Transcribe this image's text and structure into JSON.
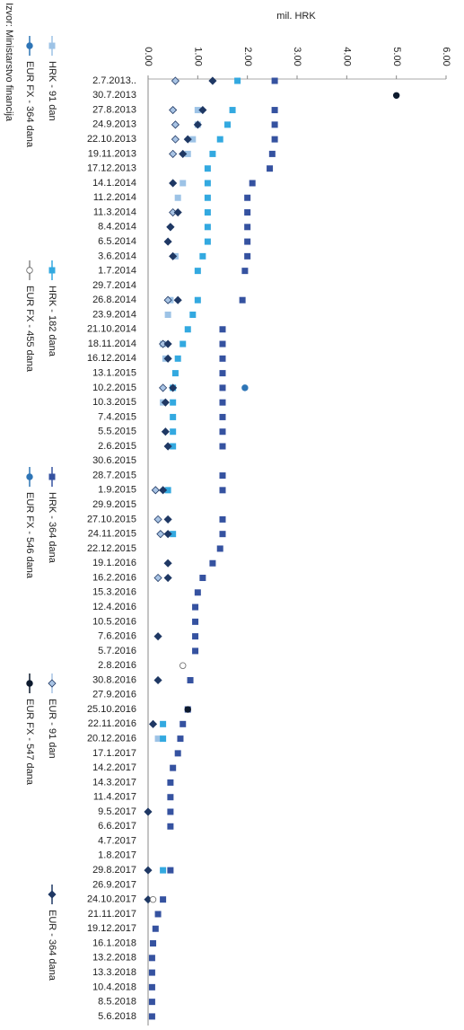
{
  "chart_data": {
    "type": "scatter",
    "orientation": "rotated",
    "y_label": "mil. HRK",
    "source": "Izvor: Ministarstvo financija",
    "ylim": [
      0,
      6
    ],
    "yticks": [
      {
        "value": 0,
        "label": "0.00"
      },
      {
        "value": 1,
        "label": "1.00"
      },
      {
        "value": 2,
        "label": "2.00"
      },
      {
        "value": 3,
        "label": "3.00"
      },
      {
        "value": 4,
        "label": "4.00"
      },
      {
        "value": 5,
        "label": "5.00"
      },
      {
        "value": 6,
        "label": "6.00"
      }
    ],
    "categories": [
      "2.7.2013..",
      "30.7.2013",
      "27.8.2013",
      "24.9.2013",
      "22.10.2013",
      "19.11.2013",
      "17.12.2013",
      "14.1.2014",
      "11.2.2014",
      "11.3.2014",
      "8.4.2014",
      "6.5.2014",
      "3.6.2014",
      "1.7.2014",
      "29.7.2014",
      "26.8.2014",
      "23.9.2014",
      "21.10.2014",
      "18.11.2014",
      "16.12.2014",
      "13.1.2015",
      "10.2.2015",
      "10.3.2015",
      "7.4.2015",
      "5.5.2015",
      "2.6.2015",
      "30.6.2015",
      "28.7.2015",
      "1.9.2015",
      "29.9.2015",
      "27.10.2015",
      "24.11.2015",
      "22.12.2015",
      "19.1.2016",
      "16.2.2016",
      "15.3.2016",
      "12.4.2016",
      "10.5.2016",
      "7.6.2016",
      "5.7.2016",
      "2.8.2016",
      "30.8.2016",
      "27.9.2016",
      "25.10.2016",
      "22.11.2016",
      "20.12.2016",
      "17.1.2017",
      "14.2.2017",
      "14.3.2017",
      "11.4.2017",
      "9.5.2017",
      "6.6.2017",
      "4.7.2017",
      "1.8.2017",
      "29.8.2017",
      "26.9.2017",
      "24.10.2017",
      "21.11.2017",
      "19.12.2017",
      "16.1.2018",
      "13.2.2018",
      "13.3.2018",
      "10.4.2018",
      "8.5.2018",
      "5.6.2018"
    ],
    "series": [
      {
        "name": "HRK - 91 dan",
        "color": "#9dc3e6",
        "marker": "square",
        "values": [
          null,
          null,
          1.0,
          1.0,
          0.9,
          0.8,
          null,
          0.7,
          0.6,
          null,
          null,
          null,
          0.55,
          null,
          null,
          0.45,
          0.4,
          null,
          0.3,
          0.35,
          null,
          null,
          0.3,
          null,
          null,
          null,
          null,
          null,
          null,
          null,
          null,
          null,
          null,
          null,
          null,
          null,
          null,
          null,
          null,
          null,
          null,
          null,
          null,
          null,
          null,
          0.2,
          null,
          null,
          null,
          null,
          null,
          null,
          null,
          null,
          null,
          null,
          null,
          null,
          null,
          null,
          null,
          null,
          null,
          null,
          null
        ]
      },
      {
        "name": "HRK - 182 dana",
        "color": "#33a9e0",
        "marker": "square",
        "values": [
          1.8,
          null,
          1.7,
          1.6,
          1.45,
          1.3,
          1.2,
          1.2,
          1.2,
          1.2,
          1.2,
          1.2,
          1.1,
          1.0,
          null,
          1.0,
          0.9,
          0.8,
          0.7,
          0.6,
          0.55,
          0.5,
          0.5,
          0.5,
          0.5,
          0.5,
          null,
          null,
          0.4,
          null,
          null,
          0.5,
          null,
          null,
          null,
          null,
          null,
          null,
          null,
          null,
          null,
          null,
          null,
          null,
          0.3,
          0.3,
          null,
          null,
          null,
          null,
          null,
          null,
          null,
          null,
          0.3,
          null,
          null,
          null,
          null,
          null,
          null,
          null,
          null,
          null,
          null
        ]
      },
      {
        "name": "HRK - 364 dana",
        "color": "#3552a0",
        "marker": "square",
        "values": [
          2.55,
          null,
          2.55,
          2.55,
          2.55,
          2.5,
          2.45,
          2.1,
          2.0,
          2.0,
          2.0,
          2.0,
          2.0,
          1.95,
          null,
          1.9,
          null,
          1.5,
          1.5,
          1.5,
          1.5,
          1.5,
          1.5,
          1.5,
          1.5,
          1.5,
          null,
          1.5,
          1.5,
          null,
          1.5,
          1.5,
          1.45,
          1.3,
          1.1,
          1.0,
          0.95,
          0.95,
          0.95,
          0.95,
          null,
          0.85,
          null,
          0.8,
          0.7,
          0.65,
          0.6,
          0.5,
          0.45,
          0.45,
          0.45,
          0.45,
          null,
          null,
          0.45,
          null,
          0.3,
          0.2,
          0.15,
          0.1,
          0.08,
          0.08,
          0.08,
          0.08,
          0.08
        ]
      },
      {
        "name": "EUR - 91 dan",
        "color": "#a9c4e4",
        "marker": "diamond",
        "values": [
          0.55,
          null,
          0.5,
          0.55,
          0.55,
          0.5,
          null,
          null,
          null,
          0.5,
          0.45,
          null,
          null,
          null,
          null,
          0.4,
          null,
          null,
          0.3,
          null,
          null,
          0.3,
          null,
          null,
          null,
          null,
          null,
          null,
          0.15,
          null,
          0.2,
          0.25,
          null,
          null,
          0.2,
          null,
          null,
          null,
          null,
          null,
          null,
          null,
          null,
          null,
          null,
          null,
          null,
          null,
          null,
          null,
          null,
          null,
          null,
          null,
          null,
          null,
          null,
          null,
          null,
          null,
          null,
          null,
          null,
          null,
          null
        ]
      },
      {
        "name": "EUR - 364 dana",
        "color": "#1f3864",
        "marker": "diamond",
        "values": [
          1.3,
          null,
          1.1,
          1.0,
          0.8,
          0.7,
          null,
          0.5,
          null,
          0.6,
          0.45,
          0.4,
          0.5,
          null,
          null,
          0.6,
          null,
          null,
          0.4,
          0.4,
          null,
          0.5,
          0.35,
          null,
          0.35,
          0.4,
          null,
          null,
          0.3,
          null,
          0.4,
          0.4,
          null,
          0.4,
          0.4,
          null,
          null,
          null,
          0.2,
          null,
          null,
          0.2,
          null,
          null,
          0.1,
          null,
          null,
          null,
          null,
          null,
          0,
          null,
          null,
          null,
          0,
          null,
          0,
          null,
          null,
          null,
          null,
          null,
          null,
          null,
          null
        ]
      },
      {
        "name": "EUR FX - 364 dana",
        "color": "#2e75b6",
        "marker": "circle",
        "values": [
          null,
          null,
          null,
          null,
          null,
          null,
          null,
          null,
          null,
          null,
          null,
          null,
          null,
          null,
          null,
          null,
          null,
          null,
          null,
          null,
          null,
          1.95,
          null,
          null,
          null,
          null,
          null,
          null,
          null,
          null,
          null,
          null,
          null,
          null,
          null,
          null,
          null,
          null,
          null,
          null,
          null,
          null,
          null,
          null,
          null,
          null,
          null,
          null,
          null,
          null,
          null,
          null,
          null,
          null,
          null,
          null,
          null,
          null,
          null,
          null,
          null,
          null,
          null,
          null,
          null
        ]
      },
      {
        "name": "EUR FX - 455 dana",
        "color": "#ffffff",
        "marker": "circle",
        "values": [
          null,
          null,
          null,
          null,
          null,
          null,
          null,
          null,
          null,
          null,
          null,
          null,
          null,
          null,
          null,
          null,
          null,
          null,
          null,
          null,
          null,
          null,
          null,
          null,
          null,
          null,
          null,
          null,
          null,
          null,
          null,
          null,
          null,
          null,
          null,
          null,
          null,
          null,
          null,
          null,
          0.7,
          null,
          null,
          null,
          null,
          null,
          null,
          null,
          null,
          null,
          null,
          null,
          null,
          null,
          null,
          null,
          0.1,
          null,
          null,
          null,
          null,
          null,
          null,
          null,
          null
        ]
      },
      {
        "name": "EUR FX - 546 dana",
        "color": "#2e75b6",
        "marker": "circle",
        "values": [
          null,
          null,
          null,
          null,
          null,
          null,
          null,
          null,
          null,
          null,
          null,
          null,
          null,
          null,
          null,
          null,
          null,
          null,
          null,
          null,
          null,
          null,
          null,
          null,
          null,
          null,
          null,
          null,
          null,
          null,
          null,
          null,
          null,
          null,
          null,
          null,
          null,
          null,
          null,
          null,
          null,
          null,
          null,
          null,
          null,
          null,
          null,
          null,
          null,
          null,
          null,
          null,
          null,
          null,
          null,
          null,
          null,
          null,
          null,
          null,
          null,
          null,
          null,
          null,
          null
        ]
      },
      {
        "name": "EUR FX - 547 dana",
        "color": "#0d1a2e",
        "marker": "circle",
        "values": [
          null,
          5.0,
          null,
          null,
          null,
          null,
          null,
          null,
          null,
          null,
          null,
          null,
          null,
          null,
          null,
          null,
          null,
          null,
          null,
          null,
          null,
          null,
          null,
          null,
          null,
          null,
          null,
          null,
          null,
          null,
          null,
          null,
          null,
          null,
          null,
          null,
          null,
          null,
          null,
          null,
          null,
          null,
          null,
          0.8,
          null,
          null,
          null,
          null,
          null,
          null,
          null,
          null,
          null,
          null,
          null,
          null,
          null,
          null,
          null,
          null,
          null,
          null,
          null,
          null,
          null
        ]
      }
    ]
  }
}
